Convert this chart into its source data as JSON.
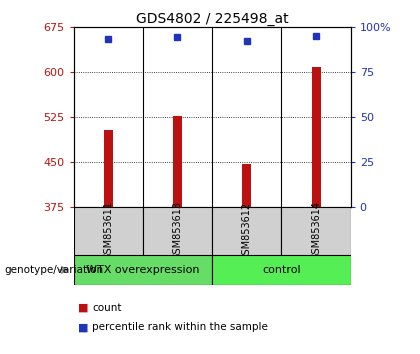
{
  "title": "GDS4802 / 225498_at",
  "samples": [
    "GSM853611",
    "GSM853613",
    "GSM853612",
    "GSM853614"
  ],
  "bar_values": [
    503,
    527,
    447,
    608
  ],
  "percentile_values": [
    93,
    94,
    92,
    95
  ],
  "bar_bottom": 375,
  "ylim_left": [
    375,
    675
  ],
  "ylim_right": [
    0,
    100
  ],
  "yticks_left": [
    375,
    450,
    525,
    600,
    675
  ],
  "yticks_right": [
    0,
    25,
    50,
    75,
    100
  ],
  "ytick_labels_right": [
    "0",
    "25",
    "50",
    "75",
    "100%"
  ],
  "bar_color": "#bb1111",
  "dot_color": "#2233bb",
  "group1_label": "WTX overexpression",
  "group1_color": "#66dd66",
  "group2_label": "control",
  "group2_color": "#55ee55",
  "genotype_label": "genotype/variation",
  "legend_count_label": "count",
  "legend_percentile_label": "percentile rank within the sample",
  "bg_plot": "#ffffff",
  "bg_sample_box": "#d0d0d0",
  "title_fontsize": 10,
  "tick_fontsize": 8,
  "sample_fontsize": 7,
  "group_fontsize": 8,
  "legend_fontsize": 7.5,
  "genotype_fontsize": 7.5
}
